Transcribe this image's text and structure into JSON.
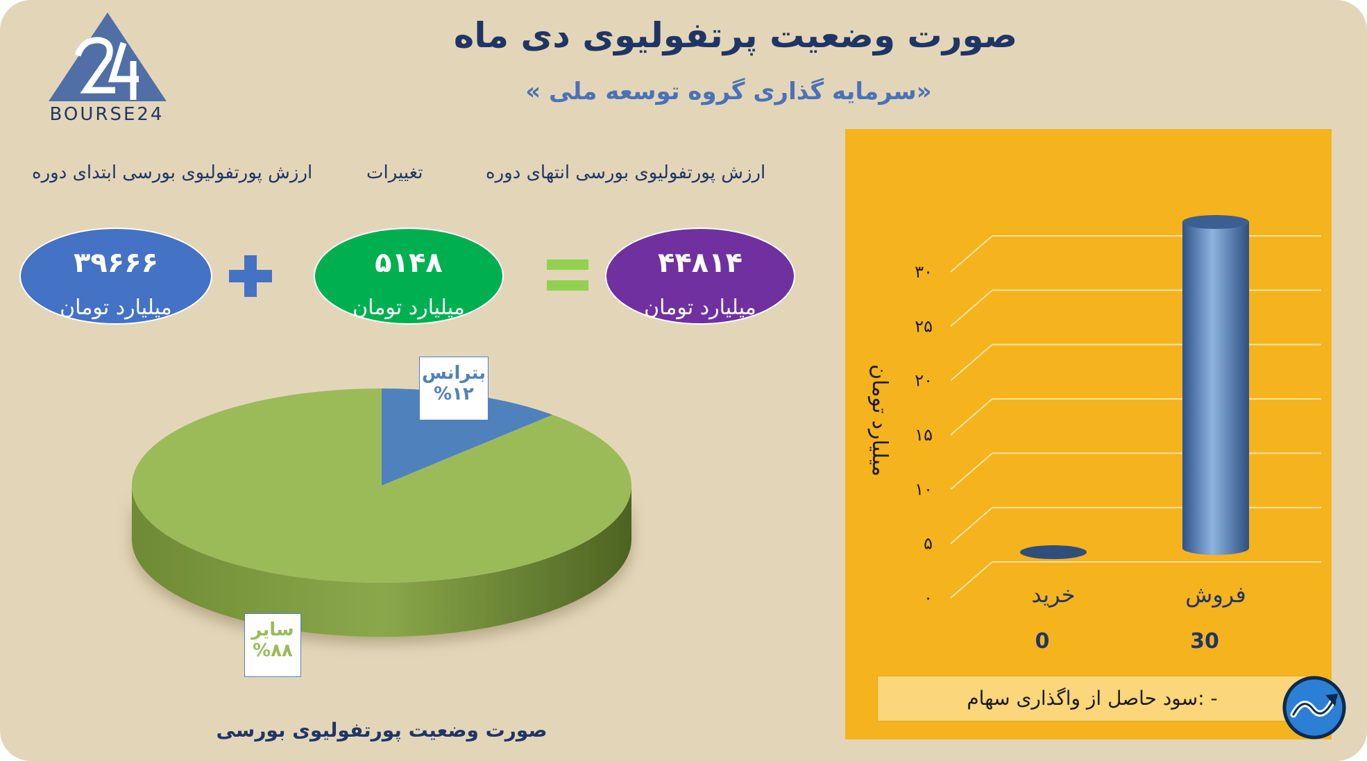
{
  "header": {
    "title": "صورت وضعیت پرتفولیوی دی ماه",
    "subtitle": "«سرمایه گذاری گروه توسعه ملی »"
  },
  "logo": {
    "text": "BOURSE24",
    "icon": "bourse24-triangle-logo"
  },
  "equation": {
    "end_label": "ارزش پورتفولیوی بورسی انتهای دوره",
    "change_label": "تغییرات",
    "start_label": "ارزش پورتفولیوی بورسی ابتدای دوره",
    "end_value": "۴۴۸۱۴",
    "change_value": "۵۱۴۸",
    "start_value": "۳۹۶۶۶",
    "unit": "میلیارد تومان",
    "colors": {
      "end": "#7030a0",
      "change": "#00b050",
      "start": "#4472c4",
      "plus": "#4472c4",
      "equals": "#92d050"
    }
  },
  "pie_caption": "صورت وضعیت پورتفولیوی بورسی",
  "chart_data": [
    {
      "type": "pie",
      "slices": [
        {
          "label": "بترانس",
          "percent_label": "%۱۲",
          "value": 12,
          "color": "#4f81bd"
        },
        {
          "label": "سایر",
          "percent_label": "%۸۸",
          "value": 88,
          "color": "#9bbb59"
        }
      ]
    },
    {
      "type": "bar",
      "categories": [
        "فروش",
        "خرید"
      ],
      "values": [
        30,
        0
      ],
      "value_labels": [
        "30",
        "0"
      ],
      "ylabel": "میلیارد تومان",
      "yticks": [
        "۰",
        "۵",
        "۱۰",
        "۱۵",
        "۲۰",
        "۲۵",
        "۳۰"
      ],
      "ylim": [
        0,
        30
      ],
      "grid": true,
      "bar_color": "#4f81bd",
      "background": "#f5b31e"
    }
  ],
  "footnote": "- :سود حاصل از واگذاری سهام",
  "badge": {
    "icon": "trend-arrow-icon"
  }
}
